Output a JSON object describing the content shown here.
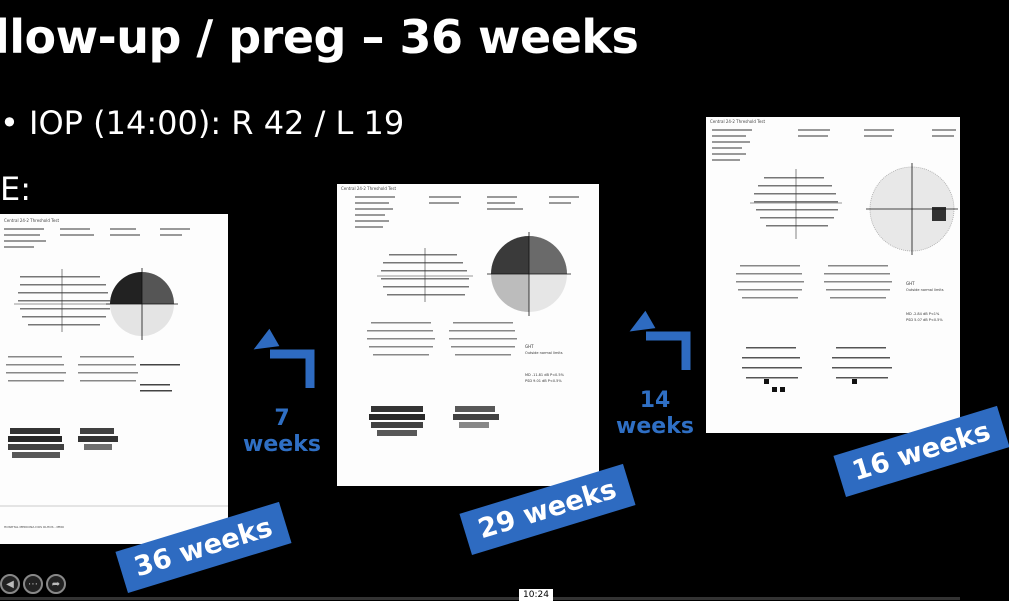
{
  "slide": {
    "title": "llow-up / preg – 36 weeks",
    "bullet": "• IOP (14:00): R 42 / L 19",
    "subhead": "E:"
  },
  "intervals": [
    {
      "label_num": "7",
      "label_unit": "weeks"
    },
    {
      "label_num": "14",
      "label_unit": "weeks"
    }
  ],
  "banners": [
    "36 weeks",
    "29 weeks",
    "16 weeks"
  ],
  "reports": {
    "r1": {
      "header": "Central 24-2 Threshold Test",
      "footer": "HOSPITAL MEDICINA DOS OLHOS - MMO"
    },
    "r2": {
      "header": "Central 24-2 Threshold Test",
      "ght": "GHT",
      "ght_text": "Outside normal limits",
      "md": "MD  -11.81 dB P<0.5%",
      "psd": "PSD  9.01 dB P<0.5%"
    },
    "r3": {
      "header": "Central 24-2 Threshold Test",
      "ght": "GHT",
      "ght_text": "Outside normal limits",
      "md": "MD  -2.84 dB P<1%",
      "psd": "PSD  5.07 dB P<0.5%"
    }
  },
  "player": {
    "time": "10:24"
  },
  "colors": {
    "accent_blue": "#2e6bc1",
    "background": "#000000"
  }
}
